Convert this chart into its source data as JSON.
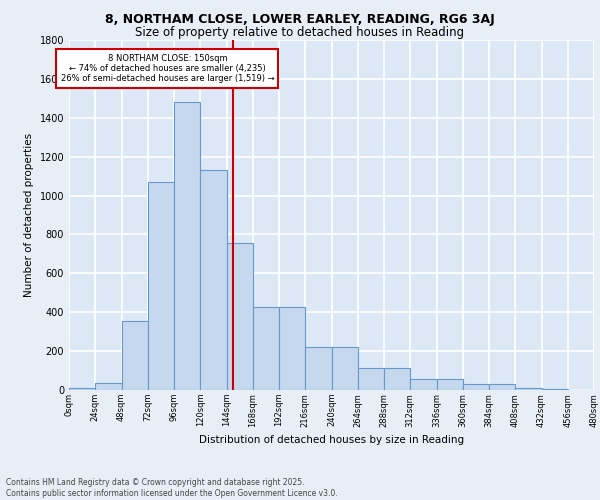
{
  "title_line1": "8, NORTHAM CLOSE, LOWER EARLEY, READING, RG6 3AJ",
  "title_line2": "Size of property relative to detached houses in Reading",
  "xlabel": "Distribution of detached houses by size in Reading",
  "ylabel": "Number of detached properties",
  "footer_line1": "Contains HM Land Registry data © Crown copyright and database right 2025.",
  "footer_line2": "Contains public sector information licensed under the Open Government Licence v3.0.",
  "property_label": "8 NORTHAM CLOSE: 150sqm",
  "pct_smaller": 74,
  "pct_larger": 26,
  "n_smaller": 4235,
  "n_larger": 1519,
  "bin_edges": [
    0,
    24,
    48,
    72,
    96,
    120,
    144,
    168,
    192,
    216,
    240,
    264,
    288,
    312,
    336,
    360,
    384,
    408,
    432,
    456,
    480
  ],
  "bar_heights": [
    10,
    38,
    355,
    1070,
    1480,
    1130,
    755,
    425,
    425,
    220,
    220,
    115,
    115,
    55,
    55,
    30,
    30,
    12,
    4,
    2
  ],
  "bar_color": "#c5d8ee",
  "bar_edge_color": "#6699cc",
  "vline_x": 150,
  "vline_color": "#cc0000",
  "annotation_box_color": "#cc0000",
  "bg_color": "#dce8f5",
  "grid_color": "#ffffff",
  "fig_bg": "#e8eef5",
  "ylim": [
    0,
    1800
  ],
  "yticks": [
    0,
    200,
    400,
    600,
    800,
    1000,
    1200,
    1400,
    1600,
    1800
  ]
}
